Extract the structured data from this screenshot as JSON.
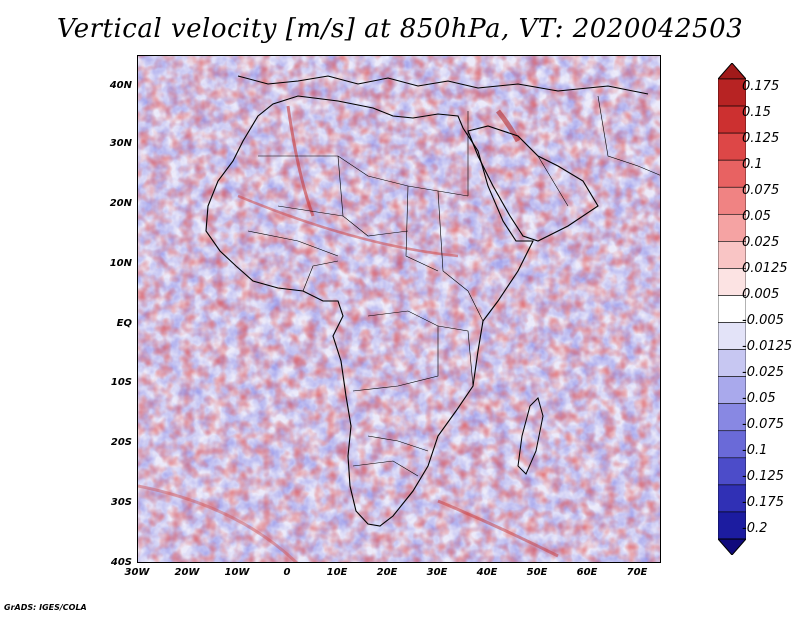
{
  "title": "Vertical velocity [m/s] at 850hPa, VT: 2020042503",
  "credit": "GrADS: IGES/COLA",
  "map": {
    "lat_labels": [
      "40N",
      "30N",
      "20N",
      "10N",
      "EQ",
      "10S",
      "20S",
      "30S",
      "40S"
    ],
    "lon_labels": [
      "30W",
      "20W",
      "10W",
      "0",
      "10E",
      "20E",
      "30E",
      "40E",
      "50E",
      "60E",
      "70E"
    ],
    "lat_range": [
      -40,
      45
    ],
    "lon_range": [
      -30,
      75
    ],
    "variable": "Vertical velocity",
    "units": "m/s",
    "level": "850hPa"
  },
  "colorbar": {
    "labels": [
      "0.175",
      "0.15",
      "0.125",
      "0.1",
      "0.075",
      "0.05",
      "0.025",
      "0.0125",
      "0.005",
      "-0.005",
      "-0.0125",
      "-0.025",
      "-0.05",
      "-0.075",
      "-0.1",
      "-0.125",
      "-0.175",
      "-0.2"
    ],
    "colors": [
      "#a11a1a",
      "#b72323",
      "#cc3030",
      "#dd4747",
      "#e86262",
      "#f08383",
      "#f5a3a3",
      "#f9c5c5",
      "#fce3e3",
      "#ffffff",
      "#e3e3f8",
      "#c7c7f2",
      "#a9a9ec",
      "#8888e3",
      "#6a6ad8",
      "#4c4cc9",
      "#3030b5",
      "#1c1ca0",
      "#100a7c"
    ]
  }
}
